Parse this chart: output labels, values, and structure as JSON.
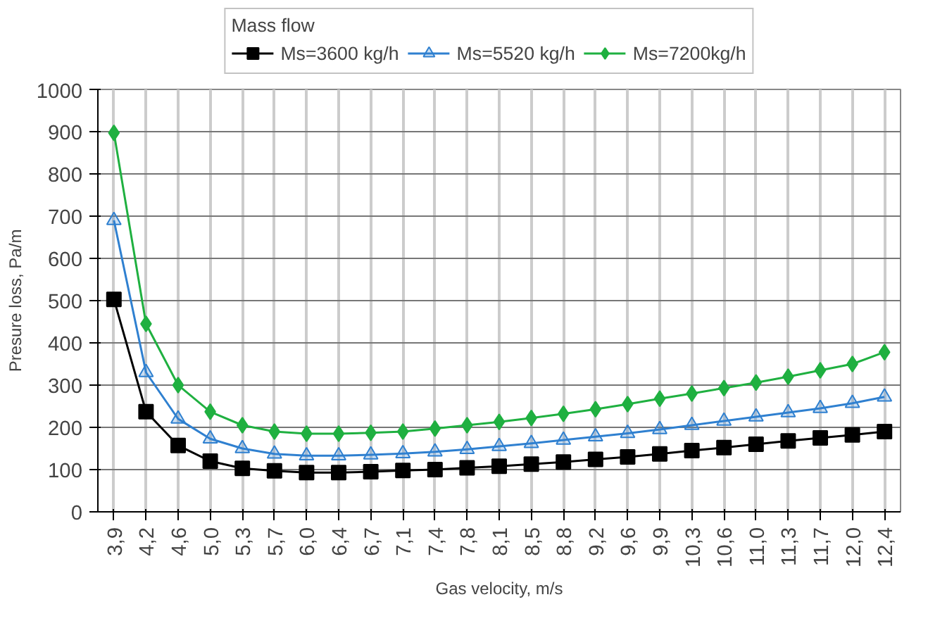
{
  "chart_data": {
    "type": "line",
    "xlabel": "Gas velocity, m/s",
    "ylabel": "Presure loss, Pa/m",
    "legend_title": "Mass flow",
    "legend": "top",
    "categories": [
      "3,9",
      "4,2",
      "4,6",
      "5,0",
      "5,3",
      "5,7",
      "6,0",
      "6,4",
      "6,7",
      "7,1",
      "7,4",
      "7,8",
      "8,1",
      "8,5",
      "8,8",
      "9,2",
      "9,6",
      "9,9",
      "10,3",
      "10,6",
      "11,0",
      "11,3",
      "11,7",
      "12,0",
      "12,4"
    ],
    "series": [
      {
        "name": "Ms=3600 kg/h",
        "color": "#000000",
        "marker": "square",
        "values": [
          503,
          237,
          157,
          120,
          103,
          97,
          93,
          93,
          95,
          98,
          100,
          104,
          108,
          113,
          118,
          124,
          130,
          137,
          145,
          152,
          160,
          168,
          175,
          182,
          190
        ]
      },
      {
        "name": "Ms=5520 kg/h",
        "color": "#2f80d0",
        "marker": "triangle",
        "values": [
          690,
          330,
          220,
          173,
          150,
          137,
          133,
          133,
          135,
          138,
          142,
          148,
          155,
          162,
          170,
          178,
          186,
          195,
          205,
          215,
          225,
          235,
          245,
          257,
          272
        ]
      },
      {
        "name": "Ms=7200kg/h",
        "color": "#1fb040",
        "marker": "diamond",
        "values": [
          897,
          445,
          300,
          237,
          205,
          190,
          185,
          185,
          187,
          190,
          197,
          205,
          213,
          222,
          232,
          243,
          255,
          268,
          280,
          293,
          306,
          320,
          335,
          350,
          378
        ]
      }
    ],
    "ylim": [
      0,
      1000
    ],
    "yticks": [
      0,
      100,
      200,
      300,
      400,
      500,
      600,
      700,
      800,
      900,
      1000
    ],
    "grid": true
  }
}
